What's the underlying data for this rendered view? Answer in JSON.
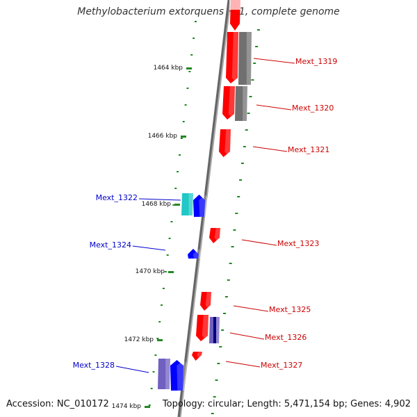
{
  "title": "Methylobacterium extorquens PA1, complete genome",
  "accession": "Accession: NC_010172",
  "topology": "Topology: circular; Length: 5,471,154 bp; Genes: 4,902",
  "colors": {
    "forward": "#ff0000",
    "reverse": "#0000ff",
    "forward_label": "#cc0000",
    "reverse_label": "#0000cc",
    "gray_track": "#707070",
    "cyan_track": "#20c8c8",
    "lavender_track": "#7060c0",
    "gc_dash": "#228822",
    "backbone": "#888888"
  },
  "ticks": [
    {
      "label": "1464 kbp"
    },
    {
      "label": "1466 kbp"
    },
    {
      "label": "1468 kbp"
    },
    {
      "label": "1470 kbp"
    },
    {
      "label": "1472 kbp"
    },
    {
      "label": "1474 kbp"
    }
  ],
  "genes": [
    {
      "label": "Mext_1319",
      "strand": "forward"
    },
    {
      "label": "Mext_1320",
      "strand": "forward"
    },
    {
      "label": "Mext_1321",
      "strand": "forward"
    },
    {
      "label": "Mext_1322",
      "strand": "reverse"
    },
    {
      "label": "Mext_1323",
      "strand": "forward"
    },
    {
      "label": "Mext_1324",
      "strand": "reverse"
    },
    {
      "label": "Mext_1325",
      "strand": "forward"
    },
    {
      "label": "Mext_1326",
      "strand": "forward"
    },
    {
      "label": "Mext_1327",
      "strand": "forward"
    },
    {
      "label": "Mext_1328",
      "strand": "reverse"
    }
  ]
}
